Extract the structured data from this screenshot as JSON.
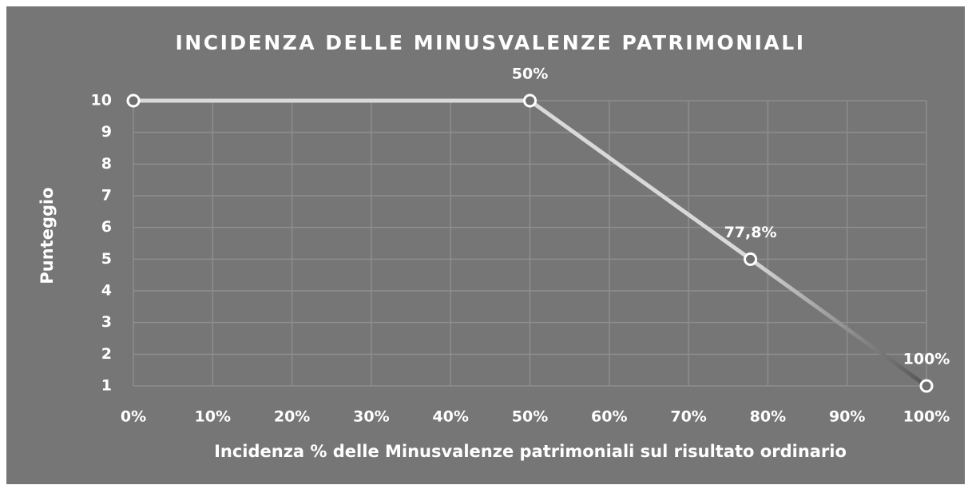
{
  "chart_data": {
    "type": "line",
    "title": "INCIDENZA DELLE MINUSVALENZE PATRIMONIALI",
    "x_label": "Incidenza % delle Minusvalenze patrimoniali sul risultato ordinario",
    "y_label": "Punteggio",
    "x": [
      0,
      50,
      77.8,
      100
    ],
    "values": [
      10,
      10,
      5,
      1
    ],
    "x_value_labels": [
      null,
      "50%",
      "77,8%",
      "100%"
    ],
    "color": "#d9d9d9",
    "xlim": [
      0,
      100
    ],
    "xticks": [
      {
        "value": 0,
        "label": "0%"
      },
      {
        "value": 10,
        "label": "10%"
      },
      {
        "value": 20,
        "label": "20%"
      },
      {
        "value": 30,
        "label": "30%"
      },
      {
        "value": 40,
        "label": "40%"
      },
      {
        "value": 50,
        "label": "50%"
      },
      {
        "value": 60,
        "label": "60%"
      },
      {
        "value": 70,
        "label": "70%"
      },
      {
        "value": 80,
        "label": "80%"
      },
      {
        "value": 90,
        "label": "90%"
      },
      {
        "value": 100,
        "label": "100%"
      }
    ],
    "ylim": [
      1,
      10
    ],
    "yticks": [
      1,
      2,
      3,
      4,
      5,
      6,
      7,
      8,
      9,
      10
    ],
    "grid": true
  }
}
